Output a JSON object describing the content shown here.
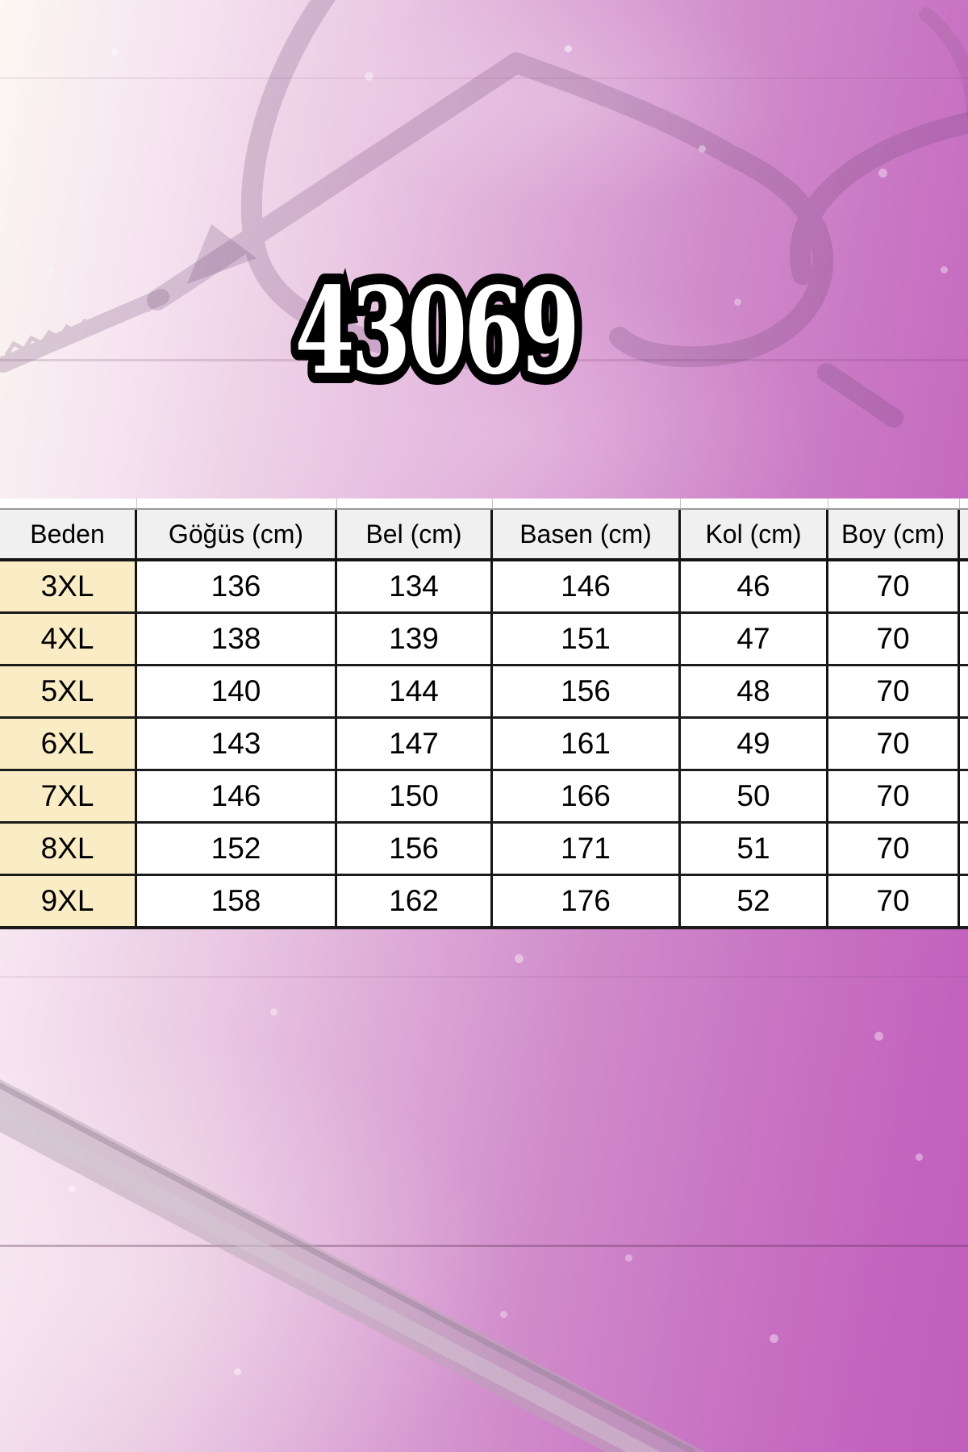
{
  "title": {
    "model_number": "43069"
  },
  "chart_data": {
    "type": "table",
    "title": "43069",
    "columns": [
      "Beden",
      "Göğüs (cm)",
      "Bel (cm)",
      "Basen (cm)",
      "Kol (cm)",
      "Boy (cm)"
    ],
    "rows": [
      [
        "3XL",
        "136",
        "134",
        "146",
        "46",
        "70"
      ],
      [
        "4XL",
        "138",
        "139",
        "151",
        "47",
        "70"
      ],
      [
        "5XL",
        "140",
        "144",
        "156",
        "48",
        "70"
      ],
      [
        "6XL",
        "143",
        "147",
        "161",
        "49",
        "70"
      ],
      [
        "7XL",
        "146",
        "150",
        "166",
        "50",
        "70"
      ],
      [
        "8XL",
        "152",
        "156",
        "171",
        "51",
        "70"
      ],
      [
        "9XL",
        "158",
        "162",
        "176",
        "52",
        "70"
      ]
    ]
  },
  "decor": {
    "silhouettes": [
      "wire-hanger-top",
      "wire-hanger-bottom-diagonal"
    ],
    "colors": {
      "accent_magenta": "#c663c0",
      "background_light": "#fcf7f2",
      "header_bg": "#f0f0f0",
      "size_column_bg": "#faedc6",
      "table_border": "#141414",
      "title_fill": "#ffffff",
      "title_outline": "#000000"
    }
  }
}
